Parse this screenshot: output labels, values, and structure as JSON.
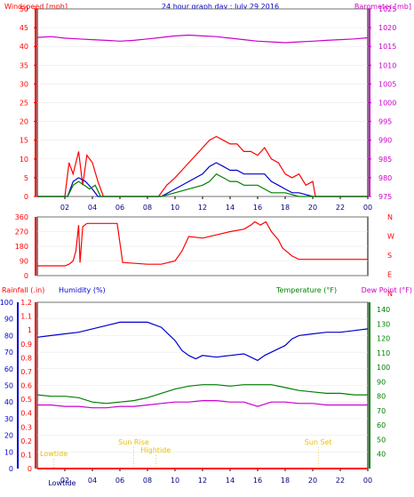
{
  "title": "24 hour graph day : July 29 2016",
  "colors": {
    "red": "#ff0000",
    "blue": "#0000cc",
    "green": "#008000",
    "magenta": "#cc00cc",
    "grid": "#ffffff",
    "plot_bg": "#ffffff",
    "yellow": "#e8c000"
  },
  "chart_data": [
    {
      "type": "line",
      "panel": "top",
      "left_axis_label": "Windspeed [mph]",
      "right_axis_label": "Barometer [mb]",
      "xticks": [
        "02",
        "04",
        "06",
        "08",
        "10",
        "12",
        "14",
        "16",
        "18",
        "20",
        "22",
        "00"
      ],
      "left_ylim": [
        0,
        50
      ],
      "left_yticks": [
        "0",
        "5",
        "10",
        "15",
        "20",
        "25",
        "30",
        "35",
        "40",
        "45",
        "50"
      ],
      "right_ylim": [
        975,
        1025
      ],
      "right_yticks": [
        "975",
        "980",
        "985",
        "990",
        "995",
        "1000",
        "1005",
        "1010",
        "1015",
        "1020",
        "1025"
      ],
      "series": [
        {
          "color": "red",
          "x": [
            0,
            2.0,
            2.3,
            2.6,
            3.0,
            3.3,
            3.6,
            4.0,
            4.4,
            4.8,
            8.8,
            9.4,
            10.0,
            10.5,
            11.0,
            11.5,
            12.0,
            12.5,
            13.0,
            13.5,
            14.0,
            14.5,
            15.0,
            15.5,
            16.0,
            16.5,
            17.0,
            17.5,
            18.0,
            18.5,
            19.0,
            19.5,
            20.0,
            20.2,
            24
          ],
          "y": [
            0,
            0,
            9,
            6,
            12,
            3,
            11,
            9,
            4,
            0,
            0,
            3,
            5,
            7,
            9,
            11,
            13,
            15,
            16,
            15,
            14,
            14,
            12,
            12,
            11,
            13,
            10,
            9,
            6,
            5,
            6,
            3,
            4,
            0,
            0
          ]
        },
        {
          "color": "blue",
          "x": [
            0,
            2.2,
            2.6,
            3.0,
            3.5,
            4.0,
            4.4,
            9.0,
            10.0,
            11.0,
            12.0,
            12.5,
            13.0,
            13.5,
            14.0,
            14.5,
            15.0,
            15.5,
            16.0,
            16.5,
            17.0,
            17.5,
            18.0,
            18.5,
            19.0,
            20.0,
            24
          ],
          "y": [
            0,
            0,
            4,
            5,
            4,
            2,
            0,
            0,
            2,
            4,
            6,
            8,
            9,
            8,
            7,
            7,
            6,
            6,
            6,
            6,
            4,
            3,
            2,
            1,
            1,
            0,
            0
          ]
        },
        {
          "color": "green",
          "x": [
            0,
            2.2,
            2.6,
            3.0,
            3.4,
            3.8,
            4.2,
            4.6,
            9.0,
            10.0,
            11.0,
            12.0,
            12.5,
            13.0,
            13.5,
            14.0,
            14.5,
            15.0,
            15.5,
            16.0,
            16.5,
            17.0,
            18.0,
            19.0,
            24
          ],
          "y": [
            0,
            0,
            3,
            4,
            3,
            2,
            3,
            0,
            0,
            1,
            2,
            3,
            4,
            6,
            5,
            4,
            4,
            3,
            3,
            3,
            2,
            1,
            1,
            0,
            0
          ]
        },
        {
          "color": "magenta",
          "axis": "right",
          "x": [
            0,
            1,
            2,
            3,
            4,
            5,
            6,
            7,
            8,
            9,
            10,
            11,
            12,
            13,
            14,
            15,
            16,
            17,
            18,
            19,
            20,
            21,
            22,
            23,
            24
          ],
          "y": [
            1017.4,
            1017.6,
            1017.2,
            1017.0,
            1016.8,
            1016.6,
            1016.4,
            1016.6,
            1017.0,
            1017.4,
            1017.8,
            1018.0,
            1017.8,
            1017.6,
            1017.2,
            1016.8,
            1016.4,
            1016.2,
            1016.0,
            1016.2,
            1016.4,
            1016.6,
            1016.8,
            1017.0,
            1017.3
          ]
        }
      ]
    },
    {
      "type": "line",
      "panel": "wind-direction",
      "left_ylim": [
        0,
        360
      ],
      "left_yticks": [
        "0",
        "90",
        "180",
        "270",
        "360"
      ],
      "right_labels": [
        "N",
        "W",
        "S",
        "E",
        "N"
      ],
      "series": [
        {
          "color": "red",
          "x": [
            0,
            2.0,
            2.3,
            2.6,
            2.8,
            3.0,
            3.1,
            3.3,
            3.6,
            3.8,
            4.0,
            5.8,
            6.2,
            6.3,
            8.0,
            9.0,
            10.0,
            10.5,
            11.0,
            12.0,
            13.0,
            14.0,
            15.0,
            15.5,
            15.8,
            16.0,
            16.2,
            16.6,
            17.0,
            17.5,
            17.8,
            18.5,
            19.0,
            24
          ],
          "y": [
            60,
            60,
            70,
            90,
            150,
            310,
            80,
            300,
            320,
            320,
            320,
            320,
            80,
            80,
            70,
            70,
            90,
            150,
            240,
            230,
            250,
            270,
            285,
            310,
            330,
            320,
            310,
            330,
            270,
            220,
            170,
            120,
            100,
            100
          ]
        }
      ]
    },
    {
      "type": "line",
      "panel": "bottom",
      "left_axis_label": "Rainfall (.in)",
      "left_axis_label2": "Humidity (%)",
      "right_axis_label": "Temperature (°F)",
      "right_axis_label2": "Dew Point (°F)",
      "xticks": [
        "02",
        "04",
        "06",
        "08",
        "10",
        "12",
        "14",
        "16",
        "18",
        "20",
        "22",
        "00"
      ],
      "rain_ylim": [
        0,
        1.2
      ],
      "rain_yticks": [
        "0",
        "0.1",
        "0.2",
        "0.3",
        "0.4",
        "0.5",
        "0.6",
        "0.7",
        "0.8",
        "0.9",
        "1",
        "1.1",
        "1.2"
      ],
      "hum_ylim": [
        0,
        100
      ],
      "hum_yticks": [
        "0",
        "10",
        "20",
        "30",
        "40",
        "50",
        "60",
        "70",
        "80",
        "90",
        "100"
      ],
      "temp_ylim": [
        30,
        145
      ],
      "temp_yticks": [
        "40",
        "50",
        "60",
        "70",
        "80",
        "90",
        "100",
        "110",
        "120",
        "130",
        "140"
      ],
      "annotations": [
        "Lowtide",
        "Sun Rise",
        "Hightide",
        "Sun Set",
        "Lowtide"
      ],
      "series": [
        {
          "name": "Humidity",
          "color": "blue",
          "axis": "humidity",
          "x": [
            0,
            1,
            2,
            3,
            4,
            5,
            6,
            7,
            8,
            9,
            10,
            10.5,
            11,
            11.5,
            12,
            13,
            14,
            15,
            15.5,
            16,
            16.5,
            17,
            18,
            18.5,
            19,
            20,
            21,
            22,
            23,
            24
          ],
          "y": [
            79,
            80,
            81,
            82,
            84,
            86,
            88,
            88,
            88,
            85,
            77,
            71,
            68,
            66,
            68,
            67,
            68,
            69,
            67,
            65,
            68,
            70,
            74,
            78,
            80,
            81,
            82,
            82,
            83,
            84
          ]
        },
        {
          "name": "Temperature",
          "color": "green",
          "axis": "temp",
          "x": [
            0,
            1,
            2,
            3,
            4,
            5,
            6,
            7,
            8,
            9,
            10,
            11,
            12,
            13,
            14,
            15,
            16,
            17,
            18,
            19,
            20,
            21,
            22,
            23,
            24
          ],
          "y": [
            81,
            80,
            80,
            79,
            76,
            75,
            76,
            77,
            79,
            82,
            85,
            87,
            88,
            88,
            87,
            88,
            88,
            88,
            86,
            84,
            83,
            82,
            82,
            81,
            81
          ]
        },
        {
          "name": "Dew Point",
          "color": "magenta",
          "axis": "temp",
          "x": [
            0,
            1,
            2,
            3,
            4,
            5,
            6,
            7,
            8,
            9,
            10,
            11,
            12,
            13,
            14,
            15,
            16,
            17,
            18,
            19,
            20,
            21,
            22,
            23,
            24
          ],
          "y": [
            74,
            74,
            73,
            73,
            72,
            72,
            73,
            73,
            74,
            75,
            76,
            76,
            77,
            77,
            76,
            76,
            73,
            76,
            76,
            75,
            75,
            74,
            74,
            74,
            74
          ]
        },
        {
          "name": "Rainfall",
          "color": "red",
          "axis": "rain",
          "x": [
            0,
            24
          ],
          "y": [
            0,
            0
          ]
        }
      ]
    }
  ]
}
